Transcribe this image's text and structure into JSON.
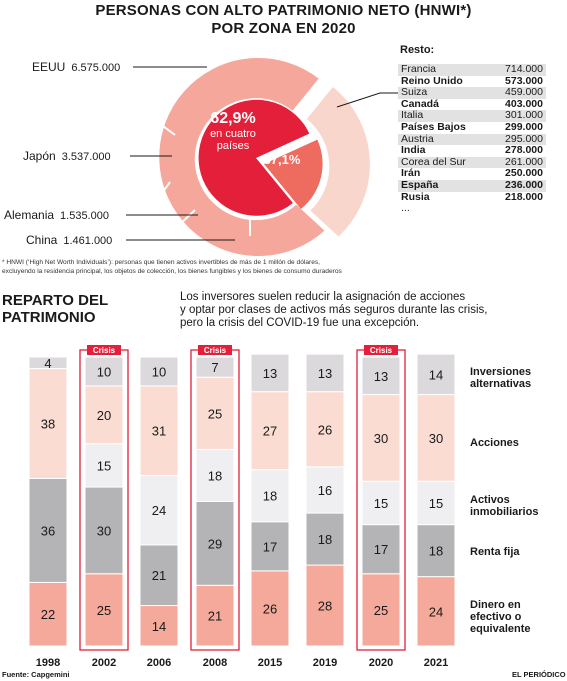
{
  "title": {
    "line1": "PERSONAS CON ALTO PATRIMONIO NETO (HNWI*)",
    "line2": "POR ZONA EN 2020"
  },
  "donut": {
    "inner_pct": "62,9%",
    "inner_text1": "en cuatro",
    "inner_text2": "países",
    "outer_pct": "37,1%",
    "zones": [
      {
        "name": "EEUU",
        "value": "6.575.000"
      },
      {
        "name": "Japón",
        "value": "3.537.000"
      },
      {
        "name": "Alemania",
        "value": "1.535.000"
      },
      {
        "name": "China",
        "value": "1.461.000"
      }
    ],
    "colors": {
      "four": "#f4a79a",
      "top4_center": "#e31f3a",
      "resto": "#f9d6cc",
      "resto_center": "#ee6b5f"
    }
  },
  "resto": {
    "heading": "Resto:",
    "rows": [
      {
        "country": "Francia",
        "value": "714.000"
      },
      {
        "country": "Reino Unido",
        "value": "573.000"
      },
      {
        "country": "Suiza",
        "value": "459.000"
      },
      {
        "country": "Canadá",
        "value": "403.000"
      },
      {
        "country": "Italia",
        "value": "301.000"
      },
      {
        "country": "Países Bajos",
        "value": "299.000"
      },
      {
        "country": "Austria",
        "value": "295.000"
      },
      {
        "country": "India",
        "value": "278.000"
      },
      {
        "country": "Corea del Sur",
        "value": "261.000"
      },
      {
        "country": "Irán",
        "value": "250.000"
      },
      {
        "country": "España",
        "value": "236.000"
      },
      {
        "country": "Rusia",
        "value": "218.000"
      },
      {
        "country": "...",
        "value": ""
      }
    ]
  },
  "note": {
    "line1": "* HNWI (‘High Net Worth Individuals’): personas que tienen activos invertibles de más de 1 millón de dólares,",
    "line2": "excluyendo la residencia principal, los objetos de colección, los bienes fungibles y los bienes de consumo duraderos"
  },
  "section": {
    "title1": "REPARTO DEL",
    "title2": "PATRIMONIO",
    "text1": "Los inversores suelen reducir la asignación de acciones",
    "text2": "y optar por clases de activos más seguros durante las crisis,",
    "text3": "pero la crisis del COVID-19 fue una excepción."
  },
  "crisis_label": "Crisis",
  "chart_data": {
    "type": "bar",
    "stacked": true,
    "categories": [
      "1998",
      "2002",
      "2006",
      "2008",
      "2015",
      "2019",
      "2020",
      "2021"
    ],
    "crisis_years": [
      "2002",
      "2008",
      "2020"
    ],
    "series": [
      {
        "name": "Dinero en efectivo o equivalente",
        "values": [
          22,
          25,
          14,
          21,
          26,
          28,
          25,
          24
        ],
        "color": "#f4a99b"
      },
      {
        "name": "Renta fija",
        "values": [
          36,
          30,
          21,
          29,
          17,
          18,
          17,
          18
        ],
        "color": "#b4b4b6"
      },
      {
        "name": "Activos inmobiliarios",
        "values": [
          0,
          15,
          24,
          18,
          18,
          16,
          15,
          15
        ],
        "color": "#efeef1"
      },
      {
        "name": "Acciones",
        "values": [
          38,
          20,
          31,
          25,
          27,
          26,
          30,
          30
        ],
        "color": "#fadcd2"
      },
      {
        "name": "Inversiones alternativas",
        "values": [
          4,
          10,
          10,
          7,
          13,
          13,
          13,
          14
        ],
        "color": "#dcd9dc"
      }
    ],
    "legend": [
      {
        "line1": "Inversiones",
        "line2": "alternativas"
      },
      {
        "line1": "Acciones",
        "line2": ""
      },
      {
        "line1": "Activos",
        "line2": "inmobiliarios"
      },
      {
        "line1": "Renta fija",
        "line2": ""
      },
      {
        "line1": "Dinero en",
        "line2": "efectivo o",
        "line3": "equivalente"
      }
    ],
    "crisis_color": "#e31f3a"
  },
  "footer": {
    "source": "Fuente: Capgemini",
    "brand": "EL PERIÓDICO"
  }
}
